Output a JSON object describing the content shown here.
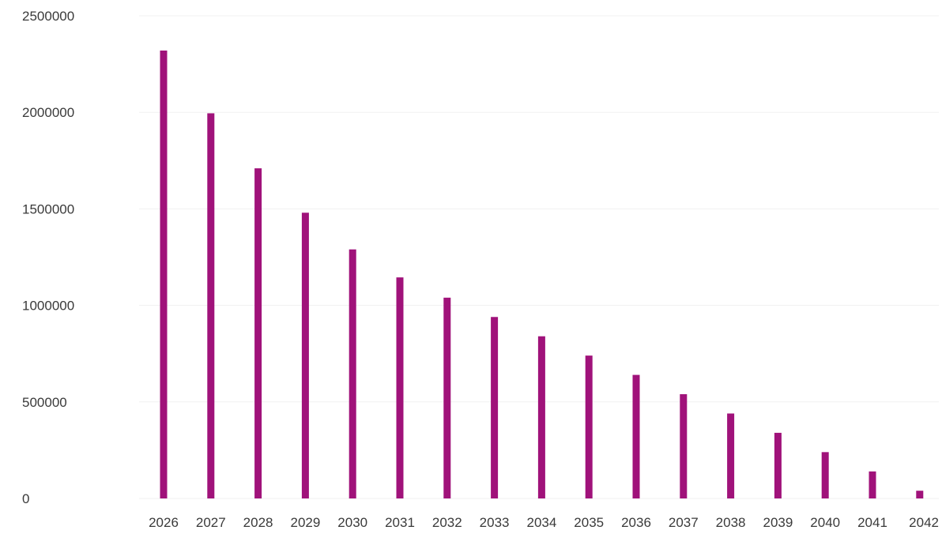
{
  "chart_data": {
    "type": "bar",
    "title": "",
    "xlabel": "",
    "ylabel": "",
    "categories": [
      "2026",
      "2027",
      "2028",
      "2029",
      "2030",
      "2031",
      "2032",
      "2033",
      "2034",
      "2035",
      "2036",
      "2037",
      "2038",
      "2039",
      "2040",
      "2041",
      "2042"
    ],
    "values": [
      2320000,
      1995000,
      1710000,
      1480000,
      1290000,
      1145000,
      1040000,
      940000,
      840000,
      740000,
      640000,
      540000,
      440000,
      340000,
      240000,
      140000,
      40000
    ],
    "ylim": [
      0,
      2500000
    ],
    "yticks": [
      "0",
      "500000",
      "1000000",
      "1500000",
      "2000000",
      "2500000"
    ],
    "grid": true,
    "legend": "none",
    "bar_color": "#a0127a"
  }
}
